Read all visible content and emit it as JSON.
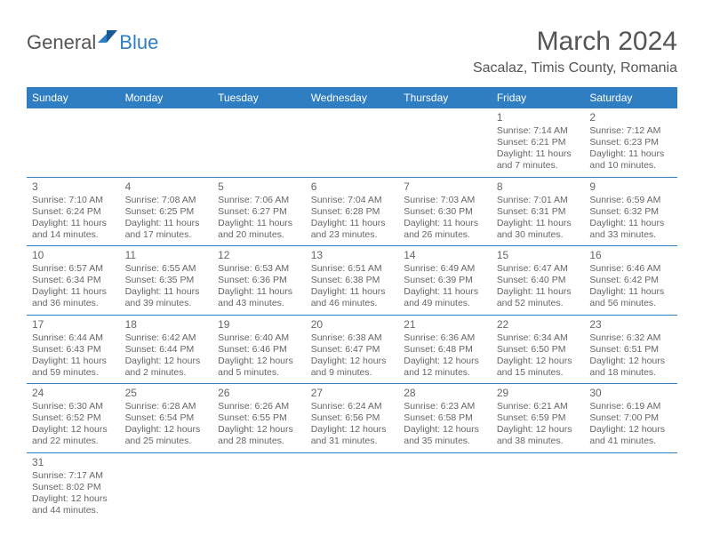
{
  "logo": {
    "part1": "General",
    "part2": "Blue"
  },
  "title": "March 2024",
  "location": "Sacalaz, Timis County, Romania",
  "colors": {
    "accent": "#2f7ec2",
    "text": "#555555",
    "bg": "#ffffff"
  },
  "weekdays": [
    "Sunday",
    "Monday",
    "Tuesday",
    "Wednesday",
    "Thursday",
    "Friday",
    "Saturday"
  ],
  "cells": [
    {
      "blank": true
    },
    {
      "blank": true
    },
    {
      "blank": true
    },
    {
      "blank": true
    },
    {
      "blank": true
    },
    {
      "day": "1",
      "sunrise": "Sunrise: 7:14 AM",
      "sunset": "Sunset: 6:21 PM",
      "daylight1": "Daylight: 11 hours",
      "daylight2": "and 7 minutes."
    },
    {
      "day": "2",
      "sunrise": "Sunrise: 7:12 AM",
      "sunset": "Sunset: 6:23 PM",
      "daylight1": "Daylight: 11 hours",
      "daylight2": "and 10 minutes."
    },
    {
      "day": "3",
      "sunrise": "Sunrise: 7:10 AM",
      "sunset": "Sunset: 6:24 PM",
      "daylight1": "Daylight: 11 hours",
      "daylight2": "and 14 minutes."
    },
    {
      "day": "4",
      "sunrise": "Sunrise: 7:08 AM",
      "sunset": "Sunset: 6:25 PM",
      "daylight1": "Daylight: 11 hours",
      "daylight2": "and 17 minutes."
    },
    {
      "day": "5",
      "sunrise": "Sunrise: 7:06 AM",
      "sunset": "Sunset: 6:27 PM",
      "daylight1": "Daylight: 11 hours",
      "daylight2": "and 20 minutes."
    },
    {
      "day": "6",
      "sunrise": "Sunrise: 7:04 AM",
      "sunset": "Sunset: 6:28 PM",
      "daylight1": "Daylight: 11 hours",
      "daylight2": "and 23 minutes."
    },
    {
      "day": "7",
      "sunrise": "Sunrise: 7:03 AM",
      "sunset": "Sunset: 6:30 PM",
      "daylight1": "Daylight: 11 hours",
      "daylight2": "and 26 minutes."
    },
    {
      "day": "8",
      "sunrise": "Sunrise: 7:01 AM",
      "sunset": "Sunset: 6:31 PM",
      "daylight1": "Daylight: 11 hours",
      "daylight2": "and 30 minutes."
    },
    {
      "day": "9",
      "sunrise": "Sunrise: 6:59 AM",
      "sunset": "Sunset: 6:32 PM",
      "daylight1": "Daylight: 11 hours",
      "daylight2": "and 33 minutes."
    },
    {
      "day": "10",
      "sunrise": "Sunrise: 6:57 AM",
      "sunset": "Sunset: 6:34 PM",
      "daylight1": "Daylight: 11 hours",
      "daylight2": "and 36 minutes."
    },
    {
      "day": "11",
      "sunrise": "Sunrise: 6:55 AM",
      "sunset": "Sunset: 6:35 PM",
      "daylight1": "Daylight: 11 hours",
      "daylight2": "and 39 minutes."
    },
    {
      "day": "12",
      "sunrise": "Sunrise: 6:53 AM",
      "sunset": "Sunset: 6:36 PM",
      "daylight1": "Daylight: 11 hours",
      "daylight2": "and 43 minutes."
    },
    {
      "day": "13",
      "sunrise": "Sunrise: 6:51 AM",
      "sunset": "Sunset: 6:38 PM",
      "daylight1": "Daylight: 11 hours",
      "daylight2": "and 46 minutes."
    },
    {
      "day": "14",
      "sunrise": "Sunrise: 6:49 AM",
      "sunset": "Sunset: 6:39 PM",
      "daylight1": "Daylight: 11 hours",
      "daylight2": "and 49 minutes."
    },
    {
      "day": "15",
      "sunrise": "Sunrise: 6:47 AM",
      "sunset": "Sunset: 6:40 PM",
      "daylight1": "Daylight: 11 hours",
      "daylight2": "and 52 minutes."
    },
    {
      "day": "16",
      "sunrise": "Sunrise: 6:46 AM",
      "sunset": "Sunset: 6:42 PM",
      "daylight1": "Daylight: 11 hours",
      "daylight2": "and 56 minutes."
    },
    {
      "day": "17",
      "sunrise": "Sunrise: 6:44 AM",
      "sunset": "Sunset: 6:43 PM",
      "daylight1": "Daylight: 11 hours",
      "daylight2": "and 59 minutes."
    },
    {
      "day": "18",
      "sunrise": "Sunrise: 6:42 AM",
      "sunset": "Sunset: 6:44 PM",
      "daylight1": "Daylight: 12 hours",
      "daylight2": "and 2 minutes."
    },
    {
      "day": "19",
      "sunrise": "Sunrise: 6:40 AM",
      "sunset": "Sunset: 6:46 PM",
      "daylight1": "Daylight: 12 hours",
      "daylight2": "and 5 minutes."
    },
    {
      "day": "20",
      "sunrise": "Sunrise: 6:38 AM",
      "sunset": "Sunset: 6:47 PM",
      "daylight1": "Daylight: 12 hours",
      "daylight2": "and 9 minutes."
    },
    {
      "day": "21",
      "sunrise": "Sunrise: 6:36 AM",
      "sunset": "Sunset: 6:48 PM",
      "daylight1": "Daylight: 12 hours",
      "daylight2": "and 12 minutes."
    },
    {
      "day": "22",
      "sunrise": "Sunrise: 6:34 AM",
      "sunset": "Sunset: 6:50 PM",
      "daylight1": "Daylight: 12 hours",
      "daylight2": "and 15 minutes."
    },
    {
      "day": "23",
      "sunrise": "Sunrise: 6:32 AM",
      "sunset": "Sunset: 6:51 PM",
      "daylight1": "Daylight: 12 hours",
      "daylight2": "and 18 minutes."
    },
    {
      "day": "24",
      "sunrise": "Sunrise: 6:30 AM",
      "sunset": "Sunset: 6:52 PM",
      "daylight1": "Daylight: 12 hours",
      "daylight2": "and 22 minutes."
    },
    {
      "day": "25",
      "sunrise": "Sunrise: 6:28 AM",
      "sunset": "Sunset: 6:54 PM",
      "daylight1": "Daylight: 12 hours",
      "daylight2": "and 25 minutes."
    },
    {
      "day": "26",
      "sunrise": "Sunrise: 6:26 AM",
      "sunset": "Sunset: 6:55 PM",
      "daylight1": "Daylight: 12 hours",
      "daylight2": "and 28 minutes."
    },
    {
      "day": "27",
      "sunrise": "Sunrise: 6:24 AM",
      "sunset": "Sunset: 6:56 PM",
      "daylight1": "Daylight: 12 hours",
      "daylight2": "and 31 minutes."
    },
    {
      "day": "28",
      "sunrise": "Sunrise: 6:23 AM",
      "sunset": "Sunset: 6:58 PM",
      "daylight1": "Daylight: 12 hours",
      "daylight2": "and 35 minutes."
    },
    {
      "day": "29",
      "sunrise": "Sunrise: 6:21 AM",
      "sunset": "Sunset: 6:59 PM",
      "daylight1": "Daylight: 12 hours",
      "daylight2": "and 38 minutes."
    },
    {
      "day": "30",
      "sunrise": "Sunrise: 6:19 AM",
      "sunset": "Sunset: 7:00 PM",
      "daylight1": "Daylight: 12 hours",
      "daylight2": "and 41 minutes."
    },
    {
      "day": "31",
      "sunrise": "Sunrise: 7:17 AM",
      "sunset": "Sunset: 8:02 PM",
      "daylight1": "Daylight: 12 hours",
      "daylight2": "and 44 minutes."
    },
    {
      "blank": true
    },
    {
      "blank": true
    },
    {
      "blank": true
    },
    {
      "blank": true
    },
    {
      "blank": true
    },
    {
      "blank": true
    }
  ]
}
